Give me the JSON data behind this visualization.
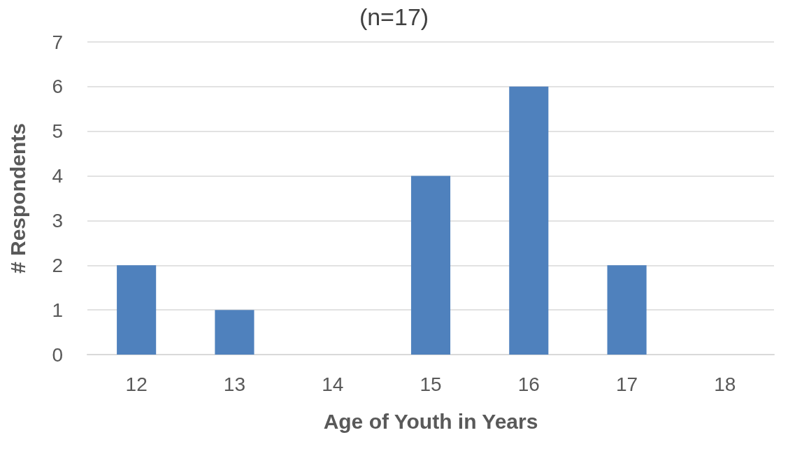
{
  "chart_data": {
    "type": "bar",
    "title": "(n=17)",
    "xlabel": "Age of Youth in Years",
    "ylabel": "# Respondents",
    "categories": [
      "12",
      "13",
      "14",
      "15",
      "16",
      "17",
      "18"
    ],
    "values": [
      2,
      1,
      0,
      4,
      6,
      2,
      0
    ],
    "color": "#4f81bd",
    "ylim": [
      0,
      7
    ],
    "yticks": [
      0,
      1,
      2,
      3,
      4,
      5,
      6,
      7
    ],
    "grid": "y"
  }
}
